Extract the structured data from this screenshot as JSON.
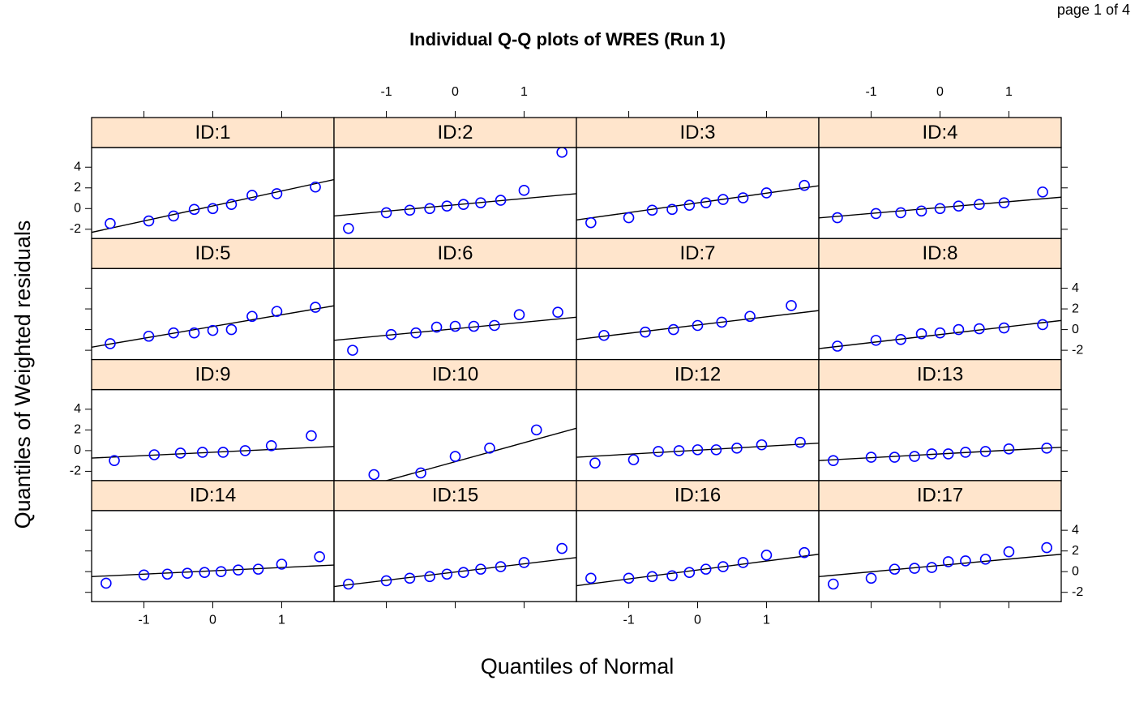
{
  "page": "page 1 of 4",
  "chart_data": {
    "type": "scatter",
    "title": "Individual Q-Q plots of WRES (Run 1)",
    "x_label": "Quantiles of Normal",
    "y_label": "Quantiles of Weighted residuals",
    "xlim": [
      -1.76,
      1.76
    ],
    "ylim": [
      -2.9,
      5.9
    ],
    "xticks": [
      -1,
      0,
      1
    ],
    "yticks": [
      -2,
      0,
      2,
      4
    ],
    "point_color": "#0000ff",
    "line_color": "#000000",
    "strip_color": "#ffe5cc",
    "panels": [
      {
        "title": "ID:1",
        "x": [
          -1.49,
          -0.93,
          -0.57,
          -0.27,
          0,
          0.27,
          0.57,
          0.93,
          1.49
        ],
        "values": [
          -1.44,
          -1.2,
          -0.72,
          -0.08,
          0,
          0.4,
          1.28,
          1.44,
          2.08
        ],
        "reference_line": {
          "x": [
            -1.76,
            1.76
          ],
          "y": [
            -2.3,
            2.8
          ]
        }
      },
      {
        "title": "ID:2",
        "x": [
          -1.55,
          -1.0,
          -0.66,
          -0.37,
          -0.12,
          0.12,
          0.37,
          0.66,
          1.0,
          1.55
        ],
        "values": [
          -1.92,
          -0.4,
          -0.16,
          0,
          0.24,
          0.4,
          0.56,
          0.8,
          1.76,
          5.44
        ],
        "reference_line": {
          "x": [
            -1.76,
            1.76
          ],
          "y": [
            -0.72,
            1.44
          ]
        }
      },
      {
        "title": "ID:3",
        "x": [
          -1.55,
          -1.0,
          -0.66,
          -0.37,
          -0.12,
          0.12,
          0.37,
          0.66,
          1.0,
          1.55
        ],
        "values": [
          -1.36,
          -0.88,
          -0.16,
          -0.08,
          0.32,
          0.56,
          0.88,
          1.04,
          1.52,
          2.24
        ],
        "reference_line": {
          "x": [
            -1.76,
            1.76
          ],
          "y": [
            -1.1,
            2.2
          ]
        }
      },
      {
        "title": "ID:4",
        "x": [
          -1.49,
          -0.93,
          -0.57,
          -0.27,
          0,
          0.27,
          0.57,
          0.93,
          1.49
        ],
        "values": [
          -0.88,
          -0.48,
          -0.4,
          -0.24,
          0,
          0.24,
          0.4,
          0.56,
          1.6
        ],
        "reference_line": {
          "x": [
            -1.76,
            1.76
          ],
          "y": [
            -0.9,
            1.1
          ]
        }
      },
      {
        "title": "ID:5",
        "x": [
          -1.49,
          -0.93,
          -0.57,
          -0.27,
          0,
          0.27,
          0.57,
          0.93,
          1.49
        ],
        "values": [
          -1.36,
          -0.64,
          -0.32,
          -0.32,
          -0.08,
          0,
          1.28,
          1.76,
          2.16
        ],
        "reference_line": {
          "x": [
            -1.76,
            1.76
          ],
          "y": [
            -1.7,
            2.3
          ]
        }
      },
      {
        "title": "ID:6",
        "x": [
          -1.49,
          -0.93,
          -0.57,
          -0.27,
          0,
          0.27,
          0.57,
          0.93,
          1.49
        ],
        "values": [
          -2.0,
          -0.48,
          -0.32,
          0.24,
          0.32,
          0.32,
          0.4,
          1.44,
          1.68
        ],
        "reference_line": {
          "x": [
            -1.76,
            1.76
          ],
          "y": [
            -1.04,
            1.2
          ]
        }
      },
      {
        "title": "ID:7",
        "x": [
          -1.36,
          -0.76,
          -0.35,
          0,
          0.35,
          0.76,
          1.36
        ],
        "values": [
          -0.56,
          -0.24,
          0,
          0.4,
          0.72,
          1.28,
          2.32
        ],
        "reference_line": {
          "x": [
            -1.76,
            1.76
          ],
          "y": [
            -0.96,
            1.84
          ]
        }
      },
      {
        "title": "ID:8",
        "x": [
          -1.49,
          -0.93,
          -0.57,
          -0.27,
          0,
          0.27,
          0.57,
          0.93,
          1.49
        ],
        "values": [
          -1.6,
          -1.04,
          -0.96,
          -0.4,
          -0.32,
          0,
          0.08,
          0.16,
          0.48
        ],
        "reference_line": {
          "x": [
            -1.76,
            1.76
          ],
          "y": [
            -1.84,
            0.88
          ]
        }
      },
      {
        "title": "ID:9",
        "x": [
          -1.43,
          -0.85,
          -0.47,
          -0.15,
          0.15,
          0.47,
          0.85,
          1.43
        ],
        "values": [
          -0.96,
          -0.4,
          -0.24,
          -0.16,
          -0.16,
          0,
          0.48,
          1.44
        ],
        "reference_line": {
          "x": [
            -1.76,
            1.76
          ],
          "y": [
            -0.72,
            0.4
          ]
        }
      },
      {
        "title": "ID:10",
        "x": [
          -1.18,
          -0.5,
          0,
          0.5,
          1.18
        ],
        "values": [
          -2.32,
          -2.16,
          -0.56,
          0.24,
          2.0
        ],
        "reference_line": {
          "x": [
            -1.76,
            1.76
          ],
          "y": [
            -4.3,
            2.16
          ]
        }
      },
      {
        "title": "ID:12",
        "x": [
          -1.49,
          -0.93,
          -0.57,
          -0.27,
          0,
          0.27,
          0.57,
          0.93,
          1.49
        ],
        "values": [
          -1.2,
          -0.88,
          -0.08,
          0,
          0.08,
          0.08,
          0.24,
          0.56,
          0.8
        ],
        "reference_line": {
          "x": [
            -1.76,
            1.76
          ],
          "y": [
            -0.64,
            0.72
          ]
        }
      },
      {
        "title": "ID:13",
        "x": [
          -1.55,
          -1.0,
          -0.66,
          -0.37,
          -0.12,
          0.12,
          0.37,
          0.66,
          1.0,
          1.55
        ],
        "values": [
          -0.96,
          -0.64,
          -0.64,
          -0.56,
          -0.32,
          -0.32,
          -0.16,
          -0.08,
          0.16,
          0.24
        ],
        "reference_line": {
          "x": [
            -1.76,
            1.76
          ],
          "y": [
            -0.96,
            0.32
          ]
        }
      },
      {
        "title": "ID:14",
        "x": [
          -1.55,
          -1.0,
          -0.66,
          -0.37,
          -0.12,
          0.12,
          0.37,
          0.66,
          1.0,
          1.55
        ],
        "values": [
          -1.12,
          -0.32,
          -0.24,
          -0.16,
          -0.08,
          0,
          0.16,
          0.24,
          0.72,
          1.44
        ],
        "reference_line": {
          "x": [
            -1.76,
            1.76
          ],
          "y": [
            -0.48,
            0.64
          ]
        }
      },
      {
        "title": "ID:15",
        "x": [
          -1.55,
          -1.0,
          -0.66,
          -0.37,
          -0.12,
          0.12,
          0.37,
          0.66,
          1.0,
          1.55
        ],
        "values": [
          -1.2,
          -0.88,
          -0.64,
          -0.48,
          -0.24,
          -0.08,
          0.24,
          0.48,
          0.88,
          2.24
        ],
        "reference_line": {
          "x": [
            -1.76,
            1.76
          ],
          "y": [
            -1.44,
            1.36
          ]
        }
      },
      {
        "title": "ID:16",
        "x": [
          -1.55,
          -1.0,
          -0.66,
          -0.37,
          -0.12,
          0.12,
          0.37,
          0.66,
          1.0,
          1.55
        ],
        "values": [
          -0.64,
          -0.64,
          -0.48,
          -0.4,
          -0.08,
          0.24,
          0.48,
          0.88,
          1.6,
          1.84
        ],
        "reference_line": {
          "x": [
            -1.76,
            1.76
          ],
          "y": [
            -1.36,
            1.68
          ]
        }
      },
      {
        "title": "ID:17",
        "x": [
          -1.55,
          -1.0,
          -0.66,
          -0.37,
          -0.12,
          0.12,
          0.37,
          0.66,
          1.0,
          1.55
        ],
        "values": [
          -1.2,
          -0.64,
          0.24,
          0.32,
          0.4,
          0.96,
          1.04,
          1.2,
          1.92,
          2.32
        ],
        "reference_line": {
          "x": [
            -1.76,
            1.76
          ],
          "y": [
            -0.48,
            1.68
          ]
        }
      }
    ]
  }
}
